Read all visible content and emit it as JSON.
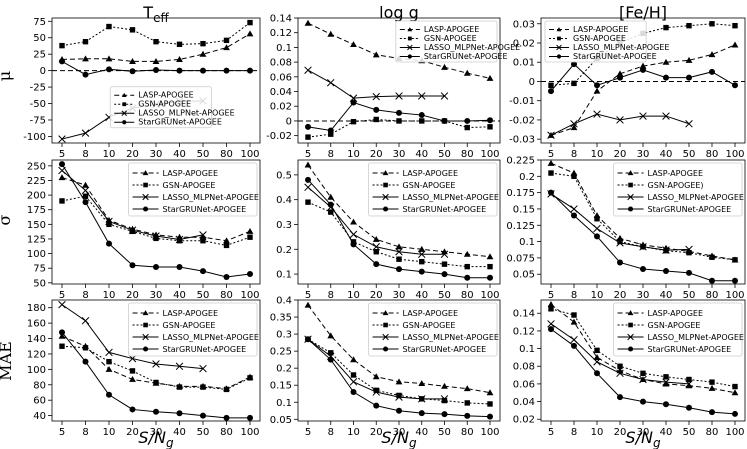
{
  "columns": [
    {
      "title": "T_eff",
      "title_main": "T",
      "title_sub": "eff"
    },
    {
      "title": "log g"
    },
    {
      "title": "[Fe/H]"
    }
  ],
  "rows": [
    {
      "label": "μ"
    },
    {
      "label": "σ"
    },
    {
      "label": "MAE"
    }
  ],
  "xlabel": {
    "main": "S/N",
    "sub": "g"
  },
  "chart_data": [
    {
      "type": "line",
      "row": 0,
      "col": 0,
      "title": "T_eff",
      "ylabel": "μ",
      "xlabel": "S/N_g",
      "categories": [
        "5",
        "8",
        "10",
        "20",
        "30",
        "40",
        "50",
        "80",
        "100"
      ],
      "ylim": [
        -110,
        80
      ],
      "yticks": [
        75,
        50,
        25,
        0,
        -25,
        -50,
        -75,
        -100
      ],
      "hline": 0,
      "legend_position": "lower-center",
      "legend_size": "small",
      "series": [
        {
          "name": "LASP-APOGEE",
          "values": [
            17,
            18,
            18,
            14,
            14,
            17,
            25,
            35,
            56
          ]
        },
        {
          "name": "GSN-APOGEE",
          "values": [
            38,
            44,
            67,
            62,
            44,
            40,
            41,
            46,
            73
          ]
        },
        {
          "name": "LASSO_MLPNet-APOGEE",
          "values": [
            -104,
            -95,
            -71,
            -57,
            -51,
            -47,
            -46,
            null,
            null
          ]
        },
        {
          "name": "StarGRUNet-APOGEE",
          "values": [
            14,
            -6,
            2,
            -1,
            1,
            0,
            0,
            0,
            0
          ]
        }
      ]
    },
    {
      "type": "line",
      "row": 0,
      "col": 1,
      "title": "log g",
      "ylabel": "",
      "xlabel": "S/N_g",
      "categories": [
        "5",
        "8",
        "10",
        "20",
        "30",
        "40",
        "50",
        "80",
        "100"
      ],
      "ylim": [
        -0.03,
        0.14
      ],
      "yticks": [
        0.14,
        0.12,
        0.1,
        0.08,
        0.06,
        0.04,
        0.02,
        0.0,
        -0.02
      ],
      "hline": 0,
      "legend_position": "top-right",
      "legend_size": "small",
      "series": [
        {
          "name": "LASP-APOGEE",
          "values": [
            0.133,
            0.118,
            0.104,
            0.09,
            0.085,
            0.082,
            0.073,
            0.065,
            0.058
          ]
        },
        {
          "name": "GSN-APOGEE",
          "values": [
            -0.022,
            -0.018,
            -0.001,
            0.002,
            0.0,
            0.0,
            0.0,
            -0.009,
            -0.008
          ]
        },
        {
          "name": "LASSO_MLPNet-APOGEE",
          "values": [
            0.069,
            0.052,
            0.031,
            0.033,
            0.034,
            0.034,
            0.034,
            null,
            null
          ]
        },
        {
          "name": "StarGRUNet-APOGEE",
          "values": [
            -0.008,
            -0.013,
            0.025,
            0.015,
            0.011,
            0.008,
            0.0,
            0.0,
            0.001
          ]
        }
      ]
    },
    {
      "type": "line",
      "row": 0,
      "col": 2,
      "title": "[Fe/H]",
      "ylabel": "",
      "xlabel": "S/N_g",
      "categories": [
        "5",
        "8",
        "10",
        "20",
        "30",
        "40",
        "50",
        "80",
        "100"
      ],
      "ylim": [
        -0.032,
        0.033
      ],
      "yticks": [
        0.03,
        0.02,
        0.01,
        0.0,
        -0.01,
        -0.02,
        -0.03
      ],
      "hline": 0,
      "legend_position": "top-left",
      "legend_size": "small",
      "series": [
        {
          "name": "LASP-APOGEE",
          "values": [
            -0.028,
            -0.024,
            -0.005,
            0.004,
            0.008,
            0.01,
            0.011,
            0.014,
            0.019
          ]
        },
        {
          "name": "GSN-APOGEE",
          "values": [
            -0.002,
            -0.001,
            0.012,
            0.02,
            0.025,
            0.028,
            0.029,
            0.03,
            0.029
          ]
        },
        {
          "name": "LASSO_MLPNet-APOGEE",
          "values": [
            -0.028,
            -0.022,
            -0.017,
            -0.02,
            -0.018,
            -0.018,
            -0.022,
            null,
            null
          ]
        },
        {
          "name": "StarGRUNet-APOGEE",
          "values": [
            -0.005,
            0.009,
            -0.002,
            0.002,
            0.006,
            0.002,
            0.002,
            0.005,
            -0.002
          ]
        }
      ]
    },
    {
      "type": "line",
      "row": 1,
      "col": 0,
      "title": "",
      "ylabel": "σ",
      "xlabel": "S/N_g",
      "categories": [
        "5",
        "8",
        "10",
        "20",
        "30",
        "40",
        "50",
        "80",
        "100"
      ],
      "ylim": [
        48,
        260
      ],
      "yticks": [
        250,
        225,
        200,
        175,
        150,
        125,
        100,
        75,
        50
      ],
      "hline": null,
      "legend_position": "top-right",
      "legend_size": "normal",
      "series": [
        {
          "name": "LASP-APOGEE",
          "values": [
            230,
            217,
            157,
            142,
            132,
            128,
            128,
            122,
            138
          ]
        },
        {
          "name": "GSN-APOGEE",
          "values": [
            190,
            198,
            150,
            138,
            126,
            122,
            122,
            114,
            128
          ]
        },
        {
          "name": "LASSO_MLPNet-APOGEE",
          "values": [
            242,
            208,
            155,
            140,
            130,
            124,
            132,
            null,
            null
          ]
        },
        {
          "name": "StarGRUNet-APOGEE",
          "values": [
            253,
            188,
            117,
            80,
            77,
            77,
            70,
            60,
            65
          ]
        }
      ]
    },
    {
      "type": "line",
      "row": 1,
      "col": 1,
      "title": "",
      "ylabel": "",
      "xlabel": "S/N_g",
      "categories": [
        "5",
        "8",
        "10",
        "20",
        "30",
        "40",
        "50",
        "80",
        "100"
      ],
      "ylim": [
        0.06,
        0.56
      ],
      "yticks": [
        0.5,
        0.4,
        0.3,
        0.2,
        0.1
      ],
      "hline": null,
      "legend_position": "top-right",
      "legend_size": "normal",
      "series": [
        {
          "name": "LASP-APOGEE",
          "values": [
            0.54,
            0.41,
            0.31,
            0.24,
            0.21,
            0.2,
            0.19,
            0.18,
            0.17
          ]
        },
        {
          "name": "GSN-APOGEE",
          "values": [
            0.39,
            0.35,
            0.23,
            0.19,
            0.16,
            0.15,
            0.14,
            0.13,
            0.13
          ]
        },
        {
          "name": "LASSO_MLPNet-APOGEE",
          "values": [
            0.45,
            0.37,
            0.26,
            0.21,
            0.19,
            0.18,
            0.18,
            null,
            null
          ]
        },
        {
          "name": "StarGRUNet-APOGEE",
          "values": [
            0.48,
            0.38,
            0.22,
            0.14,
            0.12,
            0.11,
            0.1,
            0.085,
            0.085
          ]
        }
      ]
    },
    {
      "type": "line",
      "row": 1,
      "col": 2,
      "title": "",
      "ylabel": "",
      "xlabel": "S/N_g",
      "categories": [
        "5",
        "8",
        "10",
        "20",
        "30",
        "40",
        "50",
        "80",
        "100"
      ],
      "ylim": [
        0.035,
        0.225
      ],
      "yticks": [
        0.225,
        0.2,
        0.175,
        0.15,
        0.125,
        0.1,
        0.075,
        0.05
      ],
      "hline": null,
      "legend_position": "top-right",
      "legend_size": "normal",
      "series": [
        {
          "name": "LASP-APOGEE",
          "values": [
            0.22,
            0.205,
            0.14,
            0.105,
            0.095,
            0.09,
            0.085,
            0.078,
            0.072
          ]
        },
        {
          "name": "GSN-APOGEE)",
          "values": [
            0.205,
            0.2,
            0.135,
            0.1,
            0.092,
            0.086,
            0.083,
            0.076,
            0.072
          ]
        },
        {
          "name": "LASSO_MLPNet-APOGEE",
          "values": [
            0.173,
            0.15,
            0.12,
            0.098,
            0.092,
            0.087,
            0.088,
            null,
            null
          ]
        },
        {
          "name": "StarGRUNet-APOGEE",
          "values": [
            0.175,
            0.14,
            0.108,
            0.068,
            0.058,
            0.055,
            0.052,
            0.04,
            0.04
          ]
        }
      ]
    },
    {
      "type": "line",
      "row": 2,
      "col": 0,
      "title": "",
      "ylabel": "MAE",
      "xlabel": "S/N_g",
      "categories": [
        "5",
        "8",
        "10",
        "20",
        "30",
        "40",
        "50",
        "80",
        "100"
      ],
      "ylim": [
        33,
        190
      ],
      "yticks": [
        180,
        160,
        140,
        120,
        100,
        80,
        60,
        40
      ],
      "hline": null,
      "legend_position": "top-right",
      "legend_size": "normal",
      "series": [
        {
          "name": "LASP-APOGEE",
          "values": [
            143,
            130,
            100,
            87,
            82,
            78,
            78,
            75,
            90
          ]
        },
        {
          "name": "GSN-APOGEE",
          "values": [
            130,
            128,
            110,
            98,
            83,
            77,
            77,
            74,
            89
          ]
        },
        {
          "name": "LASSO_MLPNet-APOGEE",
          "values": [
            184,
            163,
            122,
            114,
            107,
            104,
            101,
            null,
            null
          ]
        },
        {
          "name": "StarGRUNet-APOGEE",
          "values": [
            148,
            110,
            67,
            48,
            45,
            43,
            40,
            37,
            37
          ]
        }
      ]
    },
    {
      "type": "line",
      "row": 2,
      "col": 1,
      "title": "",
      "ylabel": "",
      "xlabel": "S/N_g",
      "categories": [
        "5",
        "8",
        "10",
        "20",
        "30",
        "40",
        "50",
        "80",
        "100"
      ],
      "ylim": [
        0.045,
        0.4
      ],
      "yticks": [
        0.4,
        0.35,
        0.3,
        0.25,
        0.2,
        0.15,
        0.1,
        0.05
      ],
      "hline": null,
      "legend_position": "top-right",
      "legend_size": "normal",
      "series": [
        {
          "name": "LASP-APOGEE",
          "values": [
            0.385,
            0.295,
            0.225,
            0.175,
            0.16,
            0.155,
            0.147,
            0.14,
            0.128
          ]
        },
        {
          "name": "GSN-APOGEE",
          "values": [
            0.285,
            0.245,
            0.18,
            0.135,
            0.12,
            0.11,
            0.105,
            0.098,
            0.095
          ]
        },
        {
          "name": "LASSO_MLPNet-APOGEE",
          "values": [
            0.285,
            0.235,
            0.16,
            0.13,
            0.115,
            0.11,
            0.11,
            null,
            null
          ]
        },
        {
          "name": "StarGRUNet-APOGEE",
          "values": [
            0.285,
            0.225,
            0.13,
            0.09,
            0.075,
            0.068,
            0.065,
            0.06,
            0.058
          ]
        }
      ]
    },
    {
      "type": "line",
      "row": 2,
      "col": 2,
      "title": "",
      "ylabel": "",
      "xlabel": "S/N_g",
      "categories": [
        "5",
        "8",
        "10",
        "20",
        "30",
        "40",
        "50",
        "80",
        "100"
      ],
      "ylim": [
        0.018,
        0.155
      ],
      "yticks": [
        0.14,
        0.12,
        0.1,
        0.08,
        0.06,
        0.04,
        0.02
      ],
      "hline": null,
      "legend_position": "top-right",
      "legend_size": "normal",
      "series": [
        {
          "name": "LASP-APOGEE",
          "values": [
            0.15,
            0.13,
            0.09,
            0.075,
            0.065,
            0.06,
            0.058,
            0.055,
            0.05
          ]
        },
        {
          "name": "GSN-APOGEE",
          "values": [
            0.145,
            0.138,
            0.098,
            0.08,
            0.072,
            0.068,
            0.065,
            0.062,
            0.057
          ]
        },
        {
          "name": "LASSO_MLPNet-APOGEE",
          "values": [
            0.128,
            0.11,
            0.085,
            0.072,
            0.065,
            0.062,
            0.06,
            null,
            null
          ]
        },
        {
          "name": "StarGRUNet-APOGEE",
          "values": [
            0.122,
            0.103,
            0.072,
            0.045,
            0.04,
            0.037,
            0.033,
            0.028,
            0.026
          ]
        }
      ]
    }
  ]
}
